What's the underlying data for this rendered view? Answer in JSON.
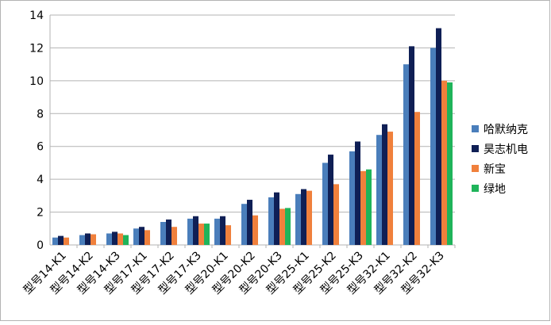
{
  "chart_data": {
    "type": "bar",
    "categories": [
      "型号14-K1",
      "型号14-K2",
      "型号14-K3",
      "型号17-K1",
      "型号17-K2",
      "型号17-K3",
      "型号20-K1",
      "型号20-K2",
      "型号20-K3",
      "型号25-K1",
      "型号25-K2",
      "型号25-K3",
      "型号32-K1",
      "型号32-K2",
      "型号32-K3"
    ],
    "series": [
      {
        "name": "哈默纳克",
        "color": "#4a7ebb",
        "values": [
          0.45,
          0.6,
          0.7,
          1.0,
          1.4,
          1.6,
          1.6,
          2.5,
          2.9,
          3.1,
          5.0,
          5.7,
          6.7,
          11.0,
          12.0
        ]
      },
      {
        "name": "昊志机电",
        "color": "#0f1f55",
        "values": [
          0.55,
          0.7,
          0.8,
          1.1,
          1.55,
          1.75,
          1.75,
          2.75,
          3.2,
          3.4,
          5.5,
          6.3,
          7.35,
          12.1,
          13.2
        ]
      },
      {
        "name": "新宝",
        "color": "#f0803c",
        "values": [
          0.45,
          0.65,
          0.7,
          0.9,
          1.1,
          1.3,
          1.2,
          1.8,
          2.2,
          3.3,
          3.7,
          4.5,
          6.9,
          8.1,
          10.0
        ]
      },
      {
        "name": "绿地",
        "color": "#1fb45a",
        "values": [
          null,
          null,
          0.6,
          null,
          null,
          1.3,
          null,
          null,
          2.25,
          null,
          null,
          4.6,
          null,
          null,
          9.9
        ]
      }
    ],
    "ylim": [
      0,
      14
    ],
    "yticks": [
      0,
      2,
      4,
      6,
      8,
      10,
      12,
      14
    ],
    "grid": true,
    "legend": "right"
  }
}
